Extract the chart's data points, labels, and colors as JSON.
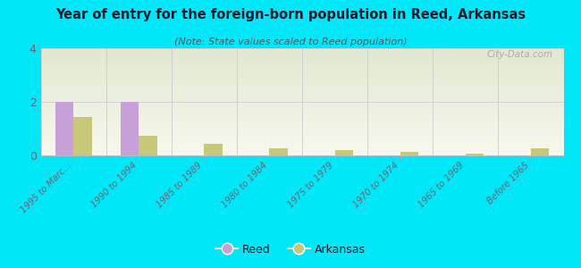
{
  "title": "Year of entry for the foreign-born population in Reed, Arkansas",
  "subtitle": "(Note: State values scaled to Reed population)",
  "categories": [
    "1995 to Marc...",
    "1990 to 1994",
    "1985 to 1989",
    "1980 to 1984",
    "1975 to 1979",
    "1970 to 1974",
    "1965 to 1969",
    "Before 1965"
  ],
  "reed_values": [
    2,
    2,
    0,
    0,
    0,
    0,
    0,
    0
  ],
  "arkansas_values": [
    1.45,
    0.72,
    0.42,
    0.28,
    0.2,
    0.13,
    0.07,
    0.28
  ],
  "reed_color": "#c8a0d8",
  "arkansas_color": "#c8c87a",
  "ylim": [
    0,
    4
  ],
  "yticks": [
    0,
    2,
    4
  ],
  "bg_outer": "#00e8f8",
  "bar_width": 0.28,
  "watermark": "City-Data.com",
  "legend_reed": "Reed",
  "legend_arkansas": "Arkansas",
  "title_color": "#1a1a2e",
  "subtitle_color": "#555566",
  "tick_color": "#666677"
}
